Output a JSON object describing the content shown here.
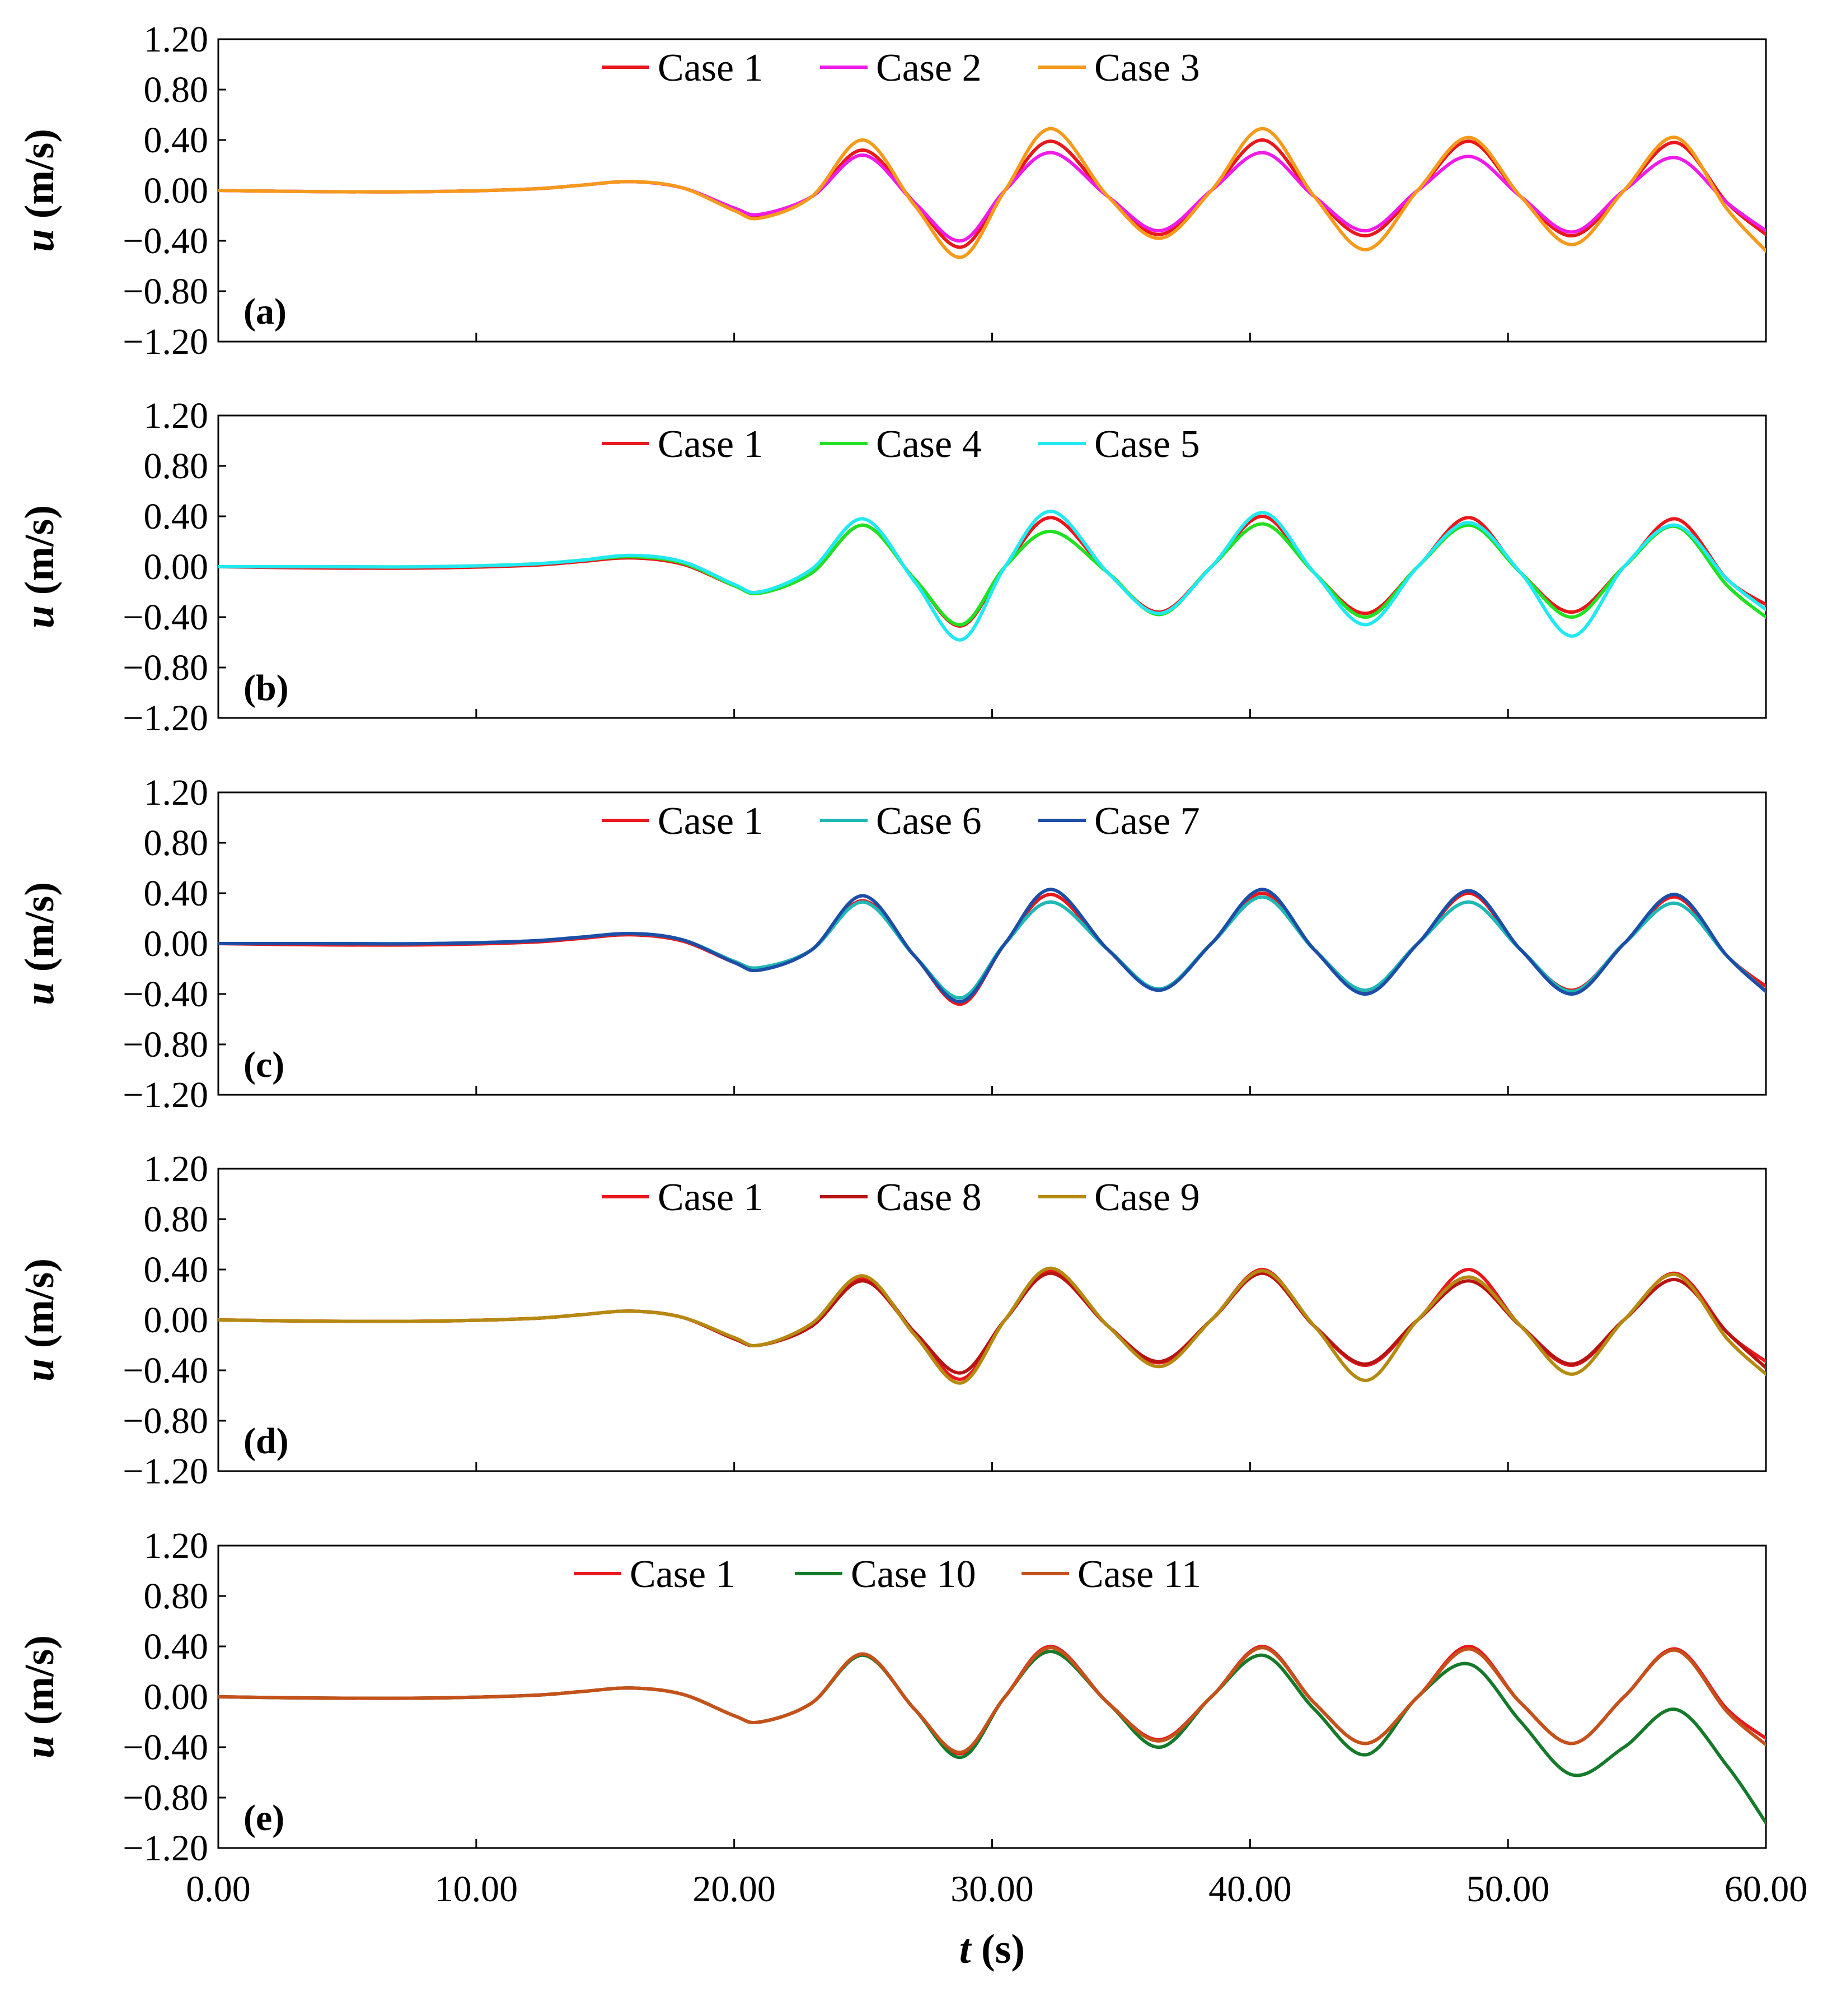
{
  "chart_data": {
    "type": "line",
    "layout": "5 vertically stacked panels sharing x-axis",
    "xlabel": {
      "var": "t",
      "unit": " (s)"
    },
    "ylabel": {
      "var": "u",
      "unit": " (m/s)"
    },
    "xlim": [
      0,
      60
    ],
    "ylim": [
      -1.2,
      1.2
    ],
    "x_ticks": [
      "0.00",
      "10.00",
      "20.00",
      "30.00",
      "40.00",
      "50.00",
      "60.00"
    ],
    "y_ticks": [
      "1.20",
      "0.80",
      "0.40",
      "0.00",
      "−0.40",
      "−0.80",
      "−1.20"
    ],
    "y_tick_values": [
      1.2,
      0.8,
      0.4,
      0.0,
      -0.4,
      -0.8,
      -1.2
    ],
    "x": [
      0,
      4,
      8,
      12,
      14,
      16,
      18,
      20,
      21,
      23,
      25,
      27,
      28.8,
      30.5,
      32.3,
      34.5,
      36.5,
      38.5,
      40.5,
      42.5,
      44.5,
      46.5,
      48.5,
      50.5,
      52.5,
      54.5,
      56.5,
      58.5,
      60
    ],
    "panels": [
      {
        "tag": "(a)",
        "series": [
          {
            "name": "Case 1",
            "color": "#e8181c",
            "values": [
              0,
              -0.01,
              -0.01,
              0.01,
              0.04,
              0.07,
              0.02,
              -0.15,
              -0.2,
              -0.05,
              0.32,
              -0.1,
              -0.45,
              0.0,
              0.39,
              -0.05,
              -0.35,
              0.0,
              0.4,
              -0.05,
              -0.36,
              0.0,
              0.39,
              -0.05,
              -0.36,
              0.0,
              0.38,
              -0.1,
              -0.35
            ]
          },
          {
            "name": "Case 2",
            "color": "#ef1ce8",
            "values": [
              0,
              -0.01,
              -0.01,
              0.01,
              0.04,
              0.07,
              0.02,
              -0.14,
              -0.19,
              -0.05,
              0.28,
              -0.1,
              -0.4,
              0.0,
              0.3,
              -0.05,
              -0.32,
              0.0,
              0.3,
              -0.05,
              -0.32,
              0.0,
              0.27,
              -0.05,
              -0.33,
              0.0,
              0.26,
              -0.1,
              -0.32
            ]
          },
          {
            "name": "Case 3",
            "color": "#f59a1a",
            "values": [
              0,
              -0.01,
              -0.01,
              0.01,
              0.04,
              0.07,
              0.02,
              -0.16,
              -0.22,
              -0.05,
              0.4,
              -0.12,
              -0.53,
              0.0,
              0.49,
              -0.05,
              -0.38,
              0.0,
              0.49,
              -0.05,
              -0.47,
              0.0,
              0.42,
              -0.05,
              -0.43,
              0.0,
              0.42,
              -0.15,
              -0.48
            ]
          }
        ]
      },
      {
        "tag": "(b)",
        "series": [
          {
            "name": "Case 1",
            "color": "#e8181c",
            "values": [
              0,
              -0.01,
              -0.01,
              0.01,
              0.04,
              0.07,
              0.02,
              -0.15,
              -0.2,
              -0.05,
              0.33,
              -0.1,
              -0.47,
              0.0,
              0.39,
              -0.05,
              -0.36,
              0.0,
              0.4,
              -0.05,
              -0.37,
              0.0,
              0.39,
              -0.05,
              -0.36,
              0.0,
              0.38,
              -0.1,
              -0.3
            ]
          },
          {
            "name": "Case 4",
            "color": "#22e022",
            "values": [
              0,
              0.0,
              0.0,
              0.02,
              0.05,
              0.08,
              0.03,
              -0.15,
              -0.21,
              -0.05,
              0.33,
              -0.1,
              -0.46,
              0.0,
              0.28,
              -0.05,
              -0.38,
              0.0,
              0.34,
              -0.05,
              -0.4,
              0.0,
              0.33,
              -0.05,
              -0.4,
              0.0,
              0.32,
              -0.15,
              -0.4
            ]
          },
          {
            "name": "Case 5",
            "color": "#22e8f0",
            "values": [
              0,
              0.0,
              0.0,
              0.02,
              0.05,
              0.09,
              0.04,
              -0.14,
              -0.2,
              -0.02,
              0.38,
              -0.12,
              -0.58,
              0.0,
              0.44,
              -0.05,
              -0.37,
              0.0,
              0.43,
              -0.05,
              -0.46,
              0.0,
              0.35,
              -0.05,
              -0.55,
              0.0,
              0.33,
              -0.1,
              -0.34
            ]
          }
        ]
      },
      {
        "tag": "(c)",
        "series": [
          {
            "name": "Case 1",
            "color": "#e8181c",
            "values": [
              0,
              -0.01,
              -0.01,
              0.01,
              0.04,
              0.07,
              0.02,
              -0.15,
              -0.2,
              -0.05,
              0.34,
              -0.1,
              -0.48,
              0.0,
              0.39,
              -0.05,
              -0.36,
              0.0,
              0.4,
              -0.05,
              -0.38,
              0.0,
              0.4,
              -0.05,
              -0.37,
              0.0,
              0.37,
              -0.1,
              -0.34
            ]
          },
          {
            "name": "Case 6",
            "color": "#1fb8b4",
            "values": [
              0,
              0.0,
              0.0,
              0.02,
              0.05,
              0.08,
              0.03,
              -0.14,
              -0.19,
              -0.05,
              0.33,
              -0.1,
              -0.43,
              0.0,
              0.33,
              -0.05,
              -0.36,
              0.0,
              0.37,
              -0.05,
              -0.37,
              0.0,
              0.33,
              -0.05,
              -0.38,
              0.0,
              0.32,
              -0.1,
              -0.38
            ]
          },
          {
            "name": "Case 7",
            "color": "#1c4ea8",
            "values": [
              0,
              0.0,
              0.0,
              0.02,
              0.05,
              0.08,
              0.03,
              -0.15,
              -0.21,
              -0.05,
              0.38,
              -0.1,
              -0.46,
              0.0,
              0.43,
              -0.05,
              -0.37,
              0.0,
              0.43,
              -0.05,
              -0.4,
              0.0,
              0.42,
              -0.05,
              -0.4,
              0.0,
              0.39,
              -0.1,
              -0.38
            ]
          }
        ]
      },
      {
        "tag": "(d)",
        "series": [
          {
            "name": "Case 1",
            "color": "#e8181c",
            "values": [
              0,
              -0.01,
              -0.01,
              0.01,
              0.04,
              0.07,
              0.02,
              -0.15,
              -0.2,
              -0.05,
              0.33,
              -0.1,
              -0.47,
              0.0,
              0.39,
              -0.05,
              -0.34,
              0.0,
              0.4,
              -0.05,
              -0.36,
              0.0,
              0.4,
              -0.05,
              -0.36,
              0.0,
              0.37,
              -0.1,
              -0.33
            ]
          },
          {
            "name": "Case 8",
            "color": "#b81414",
            "values": [
              0,
              -0.01,
              -0.01,
              0.01,
              0.04,
              0.07,
              0.02,
              -0.15,
              -0.2,
              -0.05,
              0.31,
              -0.1,
              -0.42,
              0.0,
              0.37,
              -0.05,
              -0.33,
              0.0,
              0.37,
              -0.05,
              -0.35,
              0.0,
              0.31,
              -0.05,
              -0.35,
              0.0,
              0.32,
              -0.1,
              -0.38
            ]
          },
          {
            "name": "Case 9",
            "color": "#b58a10",
            "values": [
              0,
              -0.01,
              -0.01,
              0.01,
              0.04,
              0.07,
              0.02,
              -0.14,
              -0.2,
              -0.03,
              0.35,
              -0.12,
              -0.5,
              0.0,
              0.41,
              -0.05,
              -0.37,
              0.0,
              0.39,
              -0.05,
              -0.48,
              0.0,
              0.34,
              -0.05,
              -0.43,
              0.0,
              0.36,
              -0.15,
              -0.43
            ]
          }
        ]
      },
      {
        "tag": "(e)",
        "series": [
          {
            "name": "Case 1",
            "color": "#e8181c",
            "values": [
              0,
              -0.01,
              -0.01,
              0.01,
              0.04,
              0.07,
              0.02,
              -0.15,
              -0.2,
              -0.05,
              0.34,
              -0.1,
              -0.45,
              0.0,
              0.4,
              -0.05,
              -0.34,
              0.0,
              0.4,
              -0.05,
              -0.37,
              0.0,
              0.4,
              -0.05,
              -0.37,
              0.0,
              0.38,
              -0.1,
              -0.33
            ]
          },
          {
            "name": "Case 10",
            "color": "#157a2a",
            "values": [
              0,
              -0.01,
              -0.01,
              0.01,
              0.04,
              0.07,
              0.02,
              -0.15,
              -0.2,
              -0.05,
              0.33,
              -0.1,
              -0.48,
              0.0,
              0.36,
              -0.05,
              -0.4,
              0.0,
              0.33,
              -0.1,
              -0.46,
              0.0,
              0.26,
              -0.2,
              -0.62,
              -0.4,
              -0.1,
              -0.55,
              -1.0
            ]
          },
          {
            "name": "Case 11",
            "color": "#c4521a",
            "values": [
              0,
              -0.01,
              -0.01,
              0.01,
              0.04,
              0.07,
              0.02,
              -0.15,
              -0.2,
              -0.05,
              0.34,
              -0.1,
              -0.44,
              0.0,
              0.39,
              -0.05,
              -0.35,
              0.0,
              0.39,
              -0.05,
              -0.37,
              0.0,
              0.38,
              -0.05,
              -0.37,
              0.0,
              0.37,
              -0.12,
              -0.38
            ]
          }
        ]
      }
    ]
  }
}
